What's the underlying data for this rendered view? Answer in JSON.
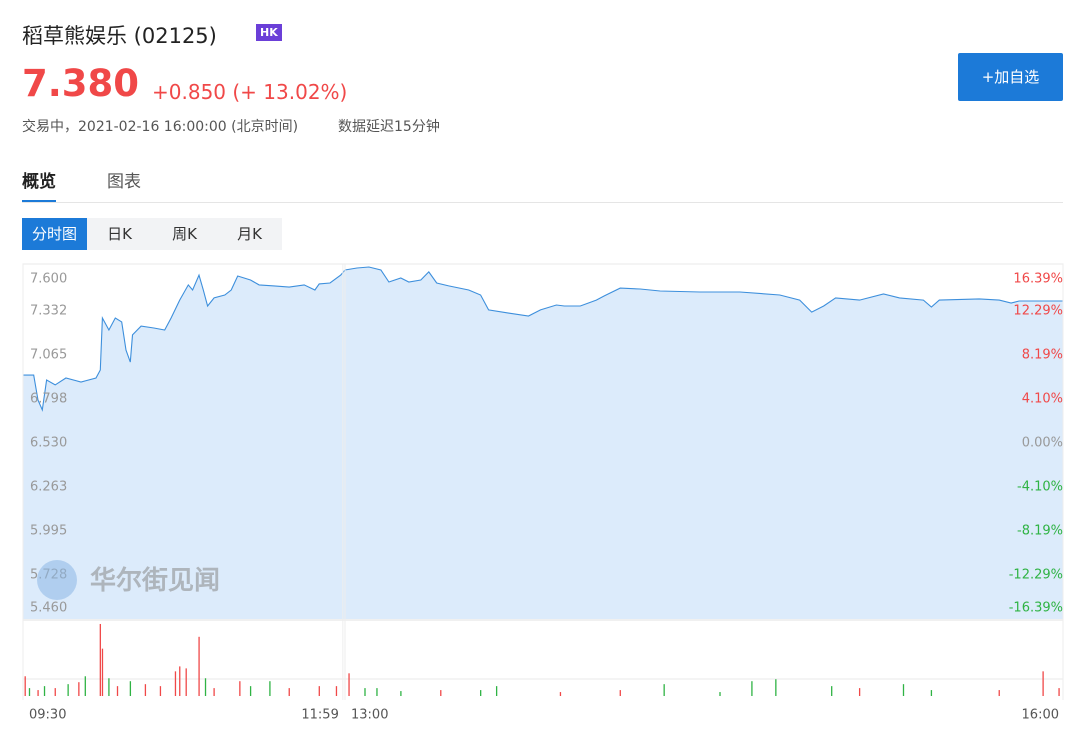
{
  "header": {
    "title": "稻草熊娱乐 (02125)",
    "badge": "HK",
    "price": "7.380",
    "change": "+0.850 (+ 13.02%)",
    "status": "交易中，2021-02-16 16:00:00 (北京时间)",
    "delay": "数据延迟15分钟",
    "button": "+加自选"
  },
  "tabs": [
    "概览",
    "图表"
  ],
  "subtabs": [
    "分时图",
    "日K",
    "周K",
    "月K"
  ],
  "watermark": "华尔街见闻",
  "chart_data": [
    {
      "type": "line",
      "color": "#3d8fdc",
      "fill": "#dcebfb",
      "x": [
        0,
        5,
        7,
        9,
        11,
        15,
        20,
        27,
        34,
        36,
        37,
        40,
        43,
        46,
        48,
        50,
        51,
        55,
        61,
        66,
        69,
        73,
        77,
        79,
        82,
        84,
        86,
        89,
        94,
        97,
        100,
        106,
        110,
        117,
        124,
        131,
        136,
        138,
        143,
        148,
        150,
        153,
        156,
        159,
        161,
        164,
        166,
        169,
        171,
        173,
        176,
        181,
        184,
        186,
        191,
        196,
        199,
        203,
        205,
        209,
        213,
        215,
        219,
        224,
        229,
        239,
        249,
        259,
        264,
        267,
        270,
        273,
        279,
        285,
        289,
        295,
        297,
        299,
        309,
        314,
        317,
        319,
        330
      ],
      "values": [
        6.943,
        6.943,
        6.791,
        6.731,
        6.913,
        6.883,
        6.925,
        6.901,
        6.925,
        6.974,
        7.29,
        7.217,
        7.29,
        7.266,
        7.095,
        7.022,
        7.187,
        7.241,
        7.229,
        7.217,
        7.29,
        7.399,
        7.491,
        7.46,
        7.551,
        7.46,
        7.363,
        7.412,
        7.43,
        7.46,
        7.545,
        7.521,
        7.491,
        7.485,
        7.478,
        7.491,
        7.46,
        7.497,
        7.503,
        7.551,
        7.582,
        7.594,
        7.6,
        7.582,
        7.509,
        7.533,
        7.509,
        7.521,
        7.57,
        7.503,
        7.485,
        7.46,
        7.43,
        7.339,
        7.32,
        7.302,
        7.339,
        7.369,
        7.363,
        7.363,
        7.399,
        7.424,
        7.472,
        7.466,
        7.454,
        7.448,
        7.448,
        7.43,
        7.399,
        7.326,
        7.363,
        7.412,
        7.399,
        7.436,
        7.412,
        7.399,
        7.357,
        7.399,
        7.406,
        7.399,
        7.381,
        7.393,
        7.393
      ],
      "xlim": [
        0,
        330
      ],
      "xticks": [
        {
          "value": 0,
          "label": "09:30"
        },
        {
          "value": 149,
          "label": "11:59"
        },
        {
          "value": 150,
          "label": "13:00"
        },
        {
          "value": 330,
          "label": "16:00"
        }
      ],
      "ylim": [
        5.46,
        7.6
      ],
      "yticks": [
        {
          "value": 7.6,
          "label": "7.600"
        },
        {
          "value": 7.332,
          "label": "7.332"
        },
        {
          "value": 7.065,
          "label": "7.065"
        },
        {
          "value": 6.798,
          "label": "6.798"
        },
        {
          "value": 6.53,
          "label": "6.530"
        },
        {
          "value": 6.263,
          "label": "6.263"
        },
        {
          "value": 5.995,
          "label": "5.995"
        },
        {
          "value": 5.728,
          "label": "5.728"
        },
        {
          "value": 5.46,
          "label": "5.460"
        }
      ],
      "y2lim": [
        -16.39,
        16.39
      ],
      "y2ticks": [
        {
          "value": 16.39,
          "label": "16.39%"
        },
        {
          "value": 12.29,
          "label": "12.29%"
        },
        {
          "value": 8.19,
          "label": "8.19%"
        },
        {
          "value": 4.1,
          "label": "4.10%"
        },
        {
          "value": 0,
          "label": "0.00%"
        },
        {
          "value": -4.1,
          "label": "-4.10%"
        },
        {
          "value": -8.19,
          "label": "-8.19%"
        },
        {
          "value": -12.29,
          "label": "-12.29%"
        },
        {
          "value": -16.39,
          "label": "-16.39%"
        }
      ]
    },
    {
      "type": "bar",
      "xlim": [
        0,
        330
      ],
      "ylim": [
        0,
        75
      ],
      "x": [
        1,
        3,
        7,
        10,
        15,
        21,
        26,
        29,
        36,
        37,
        40,
        44,
        50,
        57,
        64,
        71,
        73,
        76,
        82,
        85,
        89,
        101,
        106,
        115,
        124,
        138,
        146,
        151,
        155,
        158,
        164,
        174,
        184,
        188,
        204,
        219,
        230,
        244,
        252,
        258,
        272,
        279,
        290,
        297,
        314,
        325,
        329
      ],
      "values": [
        20,
        8,
        6,
        10,
        8,
        12,
        14,
        20,
        73,
        48,
        18,
        10,
        15,
        12,
        10,
        25,
        30,
        28,
        60,
        18,
        8,
        15,
        10,
        15,
        8,
        10,
        10,
        23,
        8,
        8,
        5,
        6,
        6,
        10,
        4,
        6,
        12,
        4,
        15,
        17,
        10,
        8,
        12,
        6,
        6,
        25,
        8
      ],
      "colors": [
        "#f04848",
        "#2fb344",
        "#f04848",
        "#2fb344",
        "#f04848",
        "#2fb344",
        "#f04848",
        "#2fb344",
        "#f04848",
        "#f04848",
        "#2fb344",
        "#f04848",
        "#2fb344",
        "#f04848",
        "#f04848",
        "#f04848",
        "#f04848",
        "#f04848",
        "#f04848",
        "#2fb344",
        "#f04848",
        "#f04848",
        "#2fb344",
        "#2fb344",
        "#f04848",
        "#f04848",
        "#f04848",
        "#f04848",
        "#2fb344",
        "#2fb344",
        "#2fb344",
        "#f04848",
        "#2fb344",
        "#2fb344",
        "#f04848",
        "#f04848",
        "#2fb344",
        "#2fb344",
        "#2fb344",
        "#2fb344",
        "#2fb344",
        "#f04848",
        "#2fb344",
        "#2fb344",
        "#f04848",
        "#f04848",
        "#f04848"
      ]
    }
  ]
}
